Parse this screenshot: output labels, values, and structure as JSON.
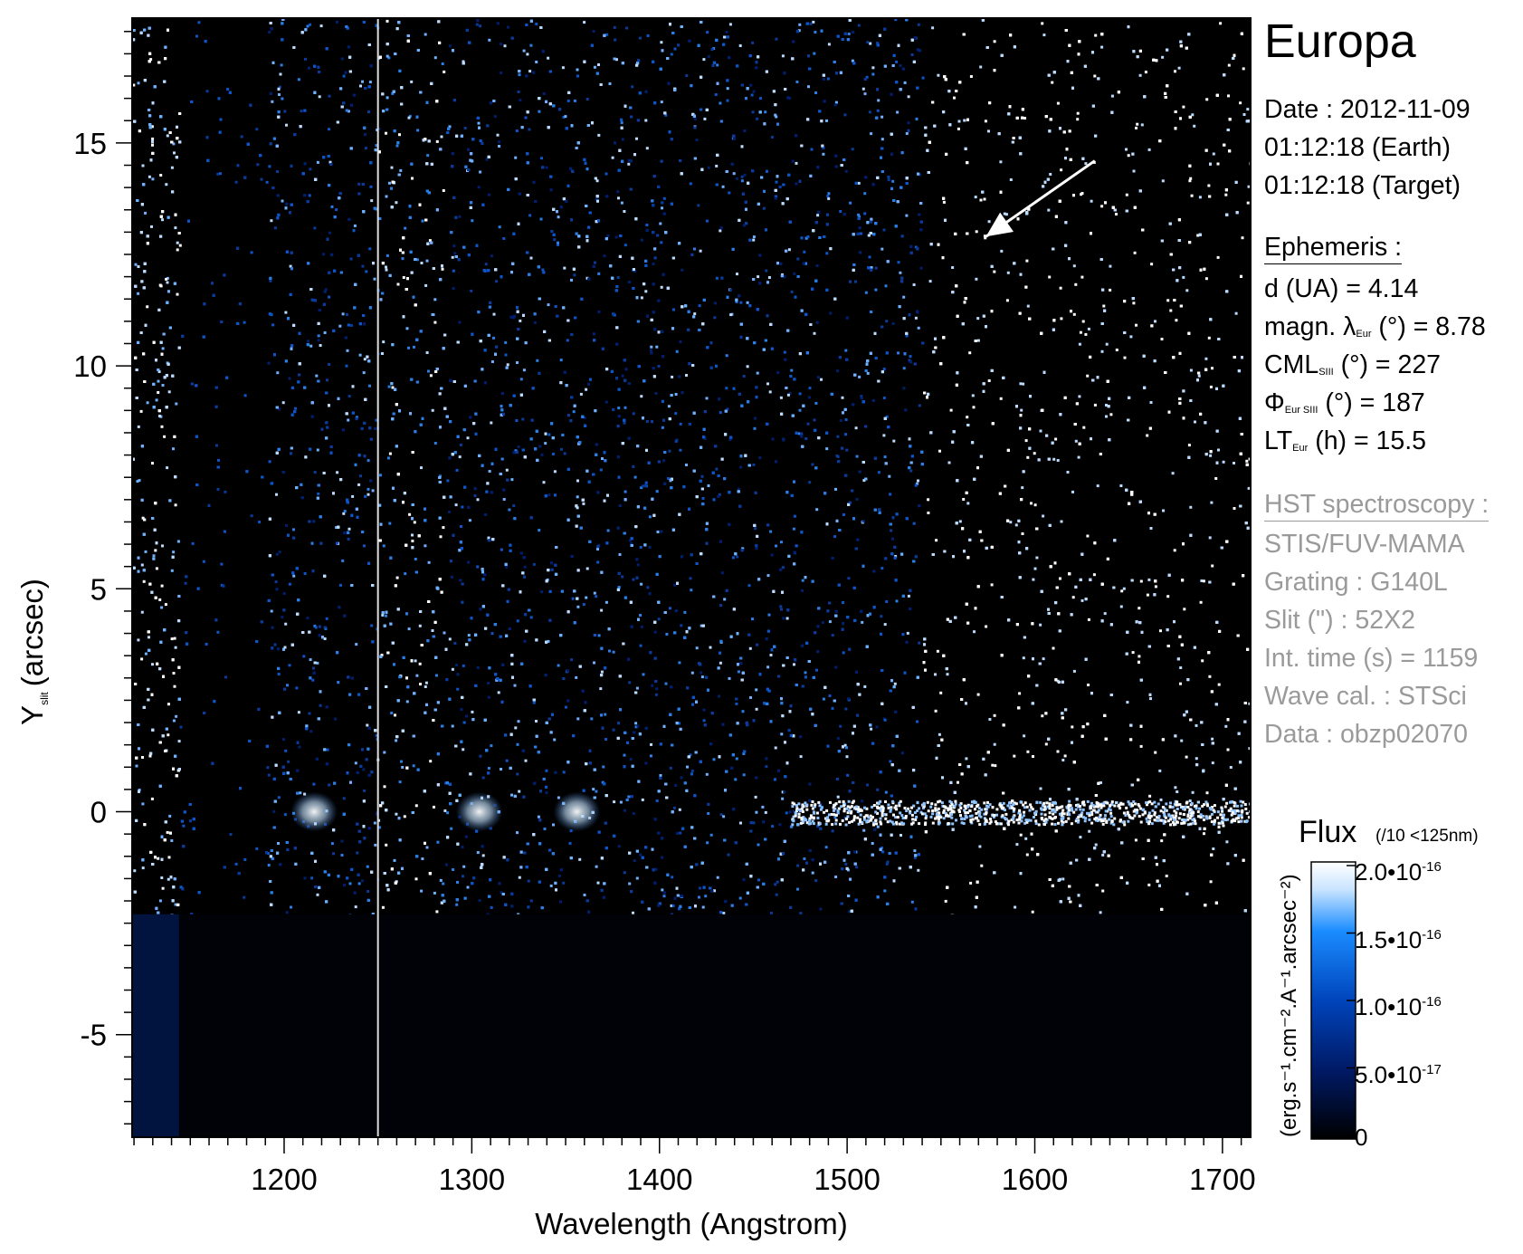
{
  "chart_data": {
    "type": "heatmap",
    "title": "",
    "xlabel": "Wavelength (Angstrom)",
    "ylabel": "Y",
    "ylabel_sub": "slit",
    "ylabel_unit": "(arcsec)",
    "xlim": [
      1119,
      1715
    ],
    "ylim": [
      -7.3,
      17.8
    ],
    "x_ticks": [
      1200,
      1300,
      1400,
      1500,
      1600,
      1700
    ],
    "x_tick_labels": [
      "1200",
      "1300",
      "1400",
      "1500",
      "1600",
      "1700"
    ],
    "y_ticks": [
      -5,
      0,
      5,
      10,
      15
    ],
    "y_tick_labels": [
      "-5",
      "0",
      "5",
      "10",
      "15"
    ],
    "slit_bottom_y": -2.3,
    "occulting_bar_x": [
      1144,
      1191
    ],
    "separator_line_x": 1250,
    "bright_features": [
      {
        "x": 1216,
        "y": 0
      },
      {
        "x": 1304,
        "y": 0
      },
      {
        "x": 1356,
        "y": 0
      }
    ],
    "continuum_row_y": 0,
    "arrow": {
      "from": {
        "x": 1632,
        "y": 14.6
      },
      "to": {
        "x": 1574,
        "y": 12.9
      }
    },
    "colorscale": [
      "#000000",
      "#001a66",
      "#0044bb",
      "#1a8cff",
      "#c9e4ff",
      "#ffffff"
    ],
    "colorbar": {
      "title": "Flux",
      "note": "(/10 <125nm)",
      "unit": "(erg.s⁻¹.cm⁻².A⁻¹.arcsec⁻²)",
      "ticks": [
        {
          "mantissa": "2.0•10",
          "exp": "-16"
        },
        {
          "mantissa": "1.5•10",
          "exp": "-16"
        },
        {
          "mantissa": "1.0•10",
          "exp": "-16"
        },
        {
          "mantissa": "5.0•10",
          "exp": "-17"
        },
        {
          "mantissa": "0",
          "exp": ""
        }
      ]
    }
  },
  "info": {
    "target": "Europa",
    "date_line": "Date : 2012-11-09",
    "earth_time": "01:12:18 (Earth)",
    "target_time": "01:12:18 (Target)",
    "ephemeris_header": "Ephemeris :",
    "d_ua": "d (UA)     = 4.14",
    "magn_prefix": "magn. λ",
    "magn_sub": "Eur",
    "magn_suffix": " (°)  = 8.78",
    "cml_prefix": "CML",
    "cml_sub": "SIII",
    "cml_suffix": " (°) = 227",
    "phi_prefix": "Φ",
    "phi_sub": "Eur SIII",
    "phi_suffix": " (°) = 187",
    "lt_prefix": "LT",
    "lt_sub": "Eur",
    "lt_suffix": " (h) = 15.5",
    "hst_header": "HST spectroscopy :",
    "instrument": "STIS/FUV-MAMA",
    "grating": "Grating : G140L",
    "slit": "Slit (\") : 52X2",
    "int_time": "Int. time (s) = 1159",
    "wave_cal": "Wave cal. : STSci",
    "data_id": "Data : obzp02070"
  }
}
